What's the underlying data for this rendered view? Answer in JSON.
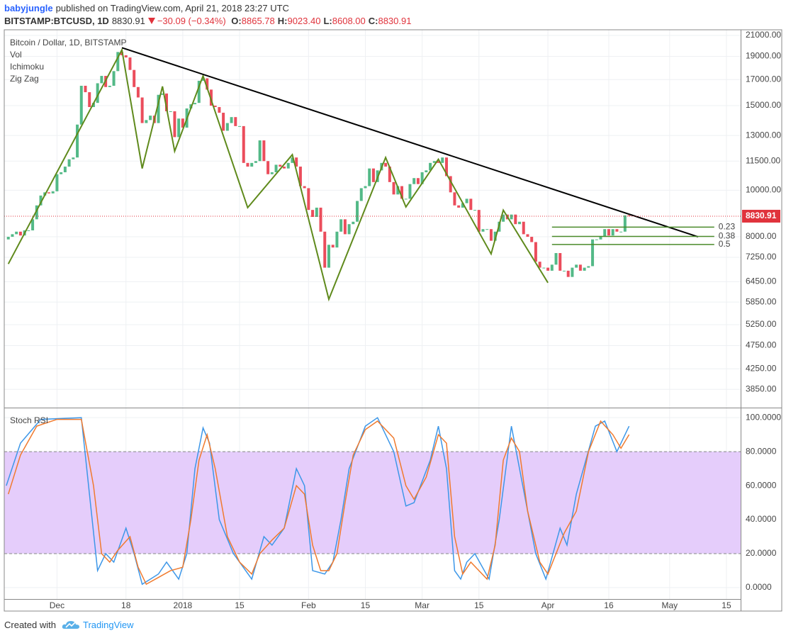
{
  "header": {
    "author": "babyjungle",
    "published": "published on TradingView.com, April 21, 2018 23:27 UTC",
    "symbol": "BITSTAMP:BTCUSD, 1D",
    "price": "8830.91",
    "change": "−30.09 (−0.34%)",
    "ohlc": [
      {
        "label": "O:",
        "value": "8865.78"
      },
      {
        "label": "H:",
        "value": "9023.40"
      },
      {
        "label": "L:",
        "value": "8608.00"
      },
      {
        "label": "C:",
        "value": "8830.91"
      }
    ]
  },
  "footer": {
    "created": "Created with",
    "brand": "TradingView"
  },
  "chart_data": [
    {
      "type": "candlestick",
      "title": "Bitcoin / Dollar, 1D, BITSTAMP",
      "indicators": [
        "Vol",
        "Ichimoku",
        "Zig Zag"
      ],
      "up_color": "#53b987",
      "down_color": "#eb4d5c",
      "log_scale": true,
      "grid": true,
      "xlim": [
        -13,
        168.5
      ],
      "ylim": [
        3528,
        21580
      ],
      "yticks": [
        {
          "value": 21000,
          "label": "21000.00"
        },
        {
          "value": 19000,
          "label": "19000.00"
        },
        {
          "value": 17000,
          "label": "17000.00"
        },
        {
          "value": 15000,
          "label": "15000.00"
        },
        {
          "value": 13000,
          "label": "13000.00"
        },
        {
          "value": 11500,
          "label": "11500.00"
        },
        {
          "value": 10000,
          "label": "10000.00"
        },
        {
          "value": 8000,
          "label": "8000.00"
        },
        {
          "value": 7250,
          "label": "7250.00"
        },
        {
          "value": 6450,
          "label": "6450.00"
        },
        {
          "value": 5850,
          "label": "5850.00"
        },
        {
          "value": 5250,
          "label": "5250.00"
        },
        {
          "value": 4750,
          "label": "4750.00"
        },
        {
          "value": 4250,
          "label": "4250.00"
        },
        {
          "value": 3850,
          "label": "3850.00"
        }
      ],
      "x": [
        -12,
        -11,
        -10,
        -9,
        -8,
        -7,
        -6,
        -5,
        -4,
        -3,
        -2,
        -1,
        0,
        1,
        2,
        3,
        4,
        5,
        6,
        7,
        8,
        9,
        10,
        11,
        12,
        13,
        14,
        15,
        16,
        17,
        18,
        19,
        20,
        21,
        22,
        23,
        24,
        25,
        26,
        27,
        28,
        29,
        30,
        31,
        32,
        33,
        34,
        35,
        36,
        37,
        38,
        39,
        40,
        41,
        42,
        43,
        44,
        45,
        46,
        47,
        48,
        49,
        50,
        51,
        52,
        53,
        54,
        55,
        56,
        57,
        58,
        59,
        60,
        61,
        62,
        63,
        64,
        65,
        66,
        67,
        68,
        69,
        70,
        71,
        72,
        73,
        74,
        75,
        76,
        77,
        78,
        79,
        80,
        81,
        82,
        83,
        84,
        85,
        86,
        87,
        88,
        89,
        90,
        91,
        92,
        93,
        94,
        95,
        96,
        97,
        98,
        99,
        100,
        101,
        102,
        103,
        104,
        105,
        106,
        107,
        108,
        109,
        110,
        111,
        112,
        113,
        114,
        115,
        116,
        117,
        118,
        119,
        120,
        121,
        122,
        123,
        124,
        125,
        126,
        127,
        128,
        129,
        130,
        131,
        132,
        133,
        134,
        135,
        136,
        137,
        138,
        139,
        140,
        141
      ],
      "open": [
        7900,
        8000,
        8100,
        8200,
        8050,
        8250,
        8250,
        8700,
        9300,
        9750,
        9900,
        9850,
        9950,
        10800,
        10900,
        11200,
        11600,
        11700,
        13700,
        16500,
        16000,
        14900,
        15200,
        16700,
        17300,
        16400,
        16500,
        17700,
        19400,
        19100,
        18900,
        17800,
        16400,
        15600,
        13800,
        14000,
        14300,
        13800,
        15800,
        15900,
        14600,
        14600,
        12900,
        14100,
        13500,
        14800,
        15100,
        15200,
        16900,
        17100,
        16200,
        15000,
        14900,
        14500,
        13300,
        13800,
        14200,
        13600,
        13600,
        11400,
        11200,
        11400,
        11500,
        12700,
        11500,
        10800,
        10900,
        11300,
        11200,
        11100,
        11400,
        11700,
        11200,
        10200,
        10100,
        9100,
        8800,
        9200,
        8200,
        6900,
        7700,
        7600,
        8200,
        8700,
        8100,
        8500,
        8600,
        9500,
        10100,
        10200,
        11100,
        10400,
        11000,
        11400,
        11200,
        10400,
        9800,
        10200,
        9600,
        9600,
        10300,
        10600,
        10300,
        10900,
        11000,
        11400,
        11500,
        11400,
        11700,
        10700,
        9900,
        9300,
        9200,
        9400,
        9600,
        9100,
        9100,
        8200,
        8300,
        8300,
        7850,
        8200,
        8600,
        8900,
        8700,
        8900,
        8500,
        8600,
        8100,
        8000,
        7800,
        7100,
        6900,
        6900,
        6800,
        7000,
        7400,
        6800,
        6800,
        6600,
        6900,
        7000,
        6800,
        6900,
        6950,
        7900,
        7900,
        8000,
        8300,
        8050,
        8300,
        8200,
        8200,
        8865.78
      ],
      "close": [
        8000,
        8100,
        8200,
        8050,
        8250,
        8250,
        8700,
        9300,
        9750,
        9900,
        9850,
        9950,
        10800,
        10900,
        11200,
        11600,
        11700,
        13700,
        16500,
        16000,
        14900,
        15200,
        16700,
        17300,
        16400,
        16500,
        17700,
        19400,
        19100,
        18900,
        17800,
        16400,
        15600,
        13800,
        14000,
        14300,
        13800,
        15800,
        15900,
        14600,
        14600,
        12900,
        14100,
        13500,
        14800,
        15100,
        15200,
        16900,
        17100,
        16200,
        15000,
        14900,
        14500,
        13300,
        13800,
        14200,
        13600,
        13600,
        11400,
        11200,
        11400,
        11500,
        12700,
        11500,
        10800,
        10900,
        11300,
        11200,
        11100,
        11400,
        11700,
        11200,
        10200,
        10100,
        9100,
        8800,
        9200,
        8200,
        6900,
        7700,
        7600,
        8200,
        8700,
        8100,
        8500,
        8600,
        9500,
        10100,
        10200,
        11100,
        10400,
        11000,
        11400,
        11200,
        10400,
        9800,
        10200,
        9600,
        9600,
        10300,
        10600,
        10300,
        10900,
        11000,
        11400,
        11500,
        11400,
        11700,
        10700,
        9900,
        9300,
        9200,
        9400,
        9600,
        9100,
        9100,
        8200,
        8300,
        8300,
        7850,
        8200,
        8600,
        8900,
        8700,
        8900,
        8500,
        8600,
        8100,
        8000,
        7800,
        7100,
        6900,
        6900,
        6800,
        7000,
        7400,
        6800,
        6800,
        6600,
        6900,
        7000,
        6800,
        6900,
        6950,
        7900,
        7900,
        8000,
        8300,
        8050,
        8300,
        8200,
        8200,
        8865.78,
        8830.91
      ],
      "zigzag": {
        "color": "#5f8a1c",
        "x": [
          -12,
          16,
          21,
          26,
          29,
          36,
          47,
          58,
          67,
          81,
          86,
          94,
          107,
          110,
          121
        ],
        "y": [
          7025,
          19600,
          11100,
          16450,
          12060,
          17300,
          9200,
          11860,
          5930,
          11700,
          9230,
          11600,
          7370,
          9090,
          6420
        ]
      },
      "trendline": {
        "color": "#000000",
        "x": [
          16,
          158
        ],
        "y": [
          19800,
          8000
        ]
      },
      "fib": {
        "color": "#4a8a2a",
        "x": [
          122,
          162
        ],
        "levels": [
          {
            "label": "0.23",
            "value": 8380
          },
          {
            "label": "0.38",
            "value": 8015
          },
          {
            "label": "0.5",
            "value": 7710
          }
        ]
      },
      "last_line_color": "#e0333c"
    },
    {
      "type": "line",
      "title": "Stoch RSI",
      "grid": true,
      "xlim": [
        -13,
        168.5
      ],
      "ylim": [
        -6.7,
        105.5
      ],
      "band": [
        20,
        80
      ],
      "band_color": "#e5cdfb",
      "yticks": [
        {
          "value": 100,
          "label": "100.0000"
        },
        {
          "value": 80,
          "label": "80.0000"
        },
        {
          "value": 60,
          "label": "60.0000"
        },
        {
          "value": 40,
          "label": "40.0000"
        },
        {
          "value": 20,
          "label": "20.0000"
        },
        {
          "value": 0,
          "label": "0.0000"
        }
      ],
      "xticks": [
        {
          "value": 0,
          "label": "Dec"
        },
        {
          "value": 17,
          "label": "18"
        },
        {
          "value": 31,
          "label": "2018"
        },
        {
          "value": 45,
          "label": "15"
        },
        {
          "value": 62,
          "label": "Feb"
        },
        {
          "value": 76,
          "label": "15"
        },
        {
          "value": 90,
          "label": "Mar"
        },
        {
          "value": 104,
          "label": "15"
        },
        {
          "value": 121,
          "label": "Apr"
        },
        {
          "value": 136,
          "label": "16"
        },
        {
          "value": 151,
          "label": "May"
        },
        {
          "value": 165,
          "label": "15"
        }
      ],
      "series": [
        {
          "color": "#3d97e8",
          "x": [
            -12.5,
            -9,
            -4,
            6,
            10,
            12,
            14,
            17,
            19,
            21,
            23,
            25,
            27,
            30,
            32,
            34,
            36,
            37.6,
            40,
            43.5,
            48,
            51,
            53,
            56,
            59,
            61,
            63,
            66,
            68,
            70,
            72,
            76,
            79,
            83,
            86,
            88,
            92,
            94,
            96,
            98,
            99.5,
            101,
            103,
            106.5,
            109,
            112,
            114,
            118,
            120.5,
            124,
            125.7,
            128,
            132.7,
            135,
            138,
            141
          ],
          "values": [
            60,
            85,
            99,
            100,
            10,
            20,
            15,
            35,
            20,
            2,
            5,
            8,
            15,
            5,
            20,
            70,
            94,
            85,
            40,
            20,
            5,
            30,
            25,
            35,
            70,
            60,
            10,
            8,
            15,
            40,
            70,
            95,
            100,
            80,
            48,
            50,
            75,
            95,
            70,
            10,
            5,
            15,
            20,
            5,
            40,
            95,
            70,
            20,
            5,
            35,
            25,
            55,
            95,
            98,
            80,
            95
          ]
        },
        {
          "color": "#f07a2e",
          "x": [
            -12,
            -9,
            -5,
            0,
            6,
            9,
            11,
            13,
            15,
            18,
            20,
            22,
            25,
            28,
            31,
            33,
            35,
            37,
            39,
            42,
            45,
            48,
            50,
            53,
            56,
            59,
            61,
            63,
            65,
            67,
            69,
            71,
            73,
            76,
            79,
            83,
            86,
            88,
            91,
            94,
            96,
            98,
            100,
            102,
            104,
            106,
            108,
            110,
            112,
            114,
            116,
            119,
            121,
            123,
            125,
            128,
            131,
            134,
            137,
            139,
            141
          ],
          "values": [
            55,
            78,
            95,
            99,
            99,
            60,
            20,
            15,
            22,
            30,
            12,
            2,
            6,
            10,
            12,
            40,
            75,
            90,
            70,
            30,
            15,
            8,
            20,
            28,
            35,
            60,
            55,
            25,
            10,
            10,
            20,
            50,
            78,
            93,
            98,
            88,
            60,
            52,
            65,
            90,
            85,
            30,
            8,
            15,
            10,
            5,
            25,
            75,
            88,
            80,
            45,
            15,
            8,
            20,
            32,
            45,
            80,
            98,
            90,
            82,
            90
          ]
        }
      ]
    }
  ]
}
